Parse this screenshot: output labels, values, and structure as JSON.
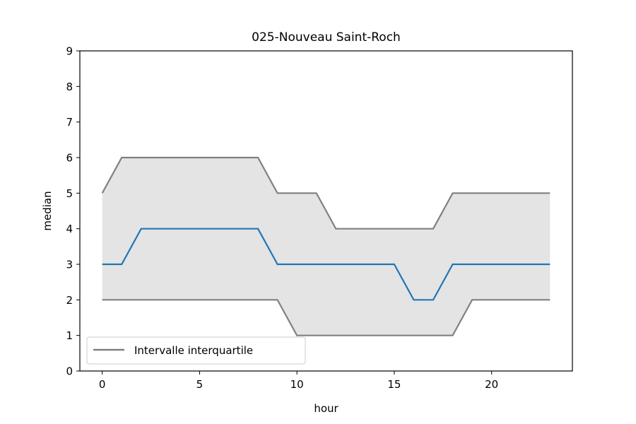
{
  "chart_data": {
    "type": "line",
    "title": "025-Nouveau Saint-Roch",
    "xlabel": "hour",
    "ylabel": "median",
    "xlim": [
      -1.15,
      24.15
    ],
    "ylim": [
      0,
      9
    ],
    "x_ticks": [
      0,
      5,
      10,
      15,
      20
    ],
    "y_ticks": [
      0,
      1,
      2,
      3,
      4,
      5,
      6,
      7,
      8,
      9
    ],
    "x": [
      0,
      1,
      2,
      3,
      4,
      5,
      6,
      7,
      8,
      9,
      10,
      11,
      12,
      13,
      14,
      15,
      16,
      17,
      18,
      19,
      20,
      21,
      22,
      23
    ],
    "series": [
      {
        "role": "median",
        "color": "#1f77b4",
        "values": [
          3,
          3,
          4,
          4,
          4,
          4,
          4,
          4,
          4,
          3,
          3,
          3,
          3,
          3,
          3,
          3,
          2,
          2,
          3,
          3,
          3,
          3,
          3,
          3
        ]
      },
      {
        "role": "upper-quartile",
        "color": "#808080",
        "values": [
          5,
          6,
          6,
          6,
          6,
          6,
          6,
          6,
          6,
          5,
          5,
          5,
          4,
          4,
          4,
          4,
          4,
          4,
          5,
          5,
          5,
          5,
          5,
          5
        ]
      },
      {
        "role": "lower-quartile",
        "color": "#808080",
        "values": [
          2,
          2,
          2,
          2,
          2,
          2,
          2,
          2,
          2,
          2,
          1,
          1,
          1,
          1,
          1,
          1,
          1,
          1,
          1,
          2,
          2,
          2,
          2,
          2
        ]
      }
    ],
    "band_fill": "#e4e4e4",
    "grid": false,
    "legend": {
      "position": "lower-left",
      "entries": [
        {
          "label": "Intervalle interquartile",
          "color": "#808080"
        }
      ]
    }
  }
}
